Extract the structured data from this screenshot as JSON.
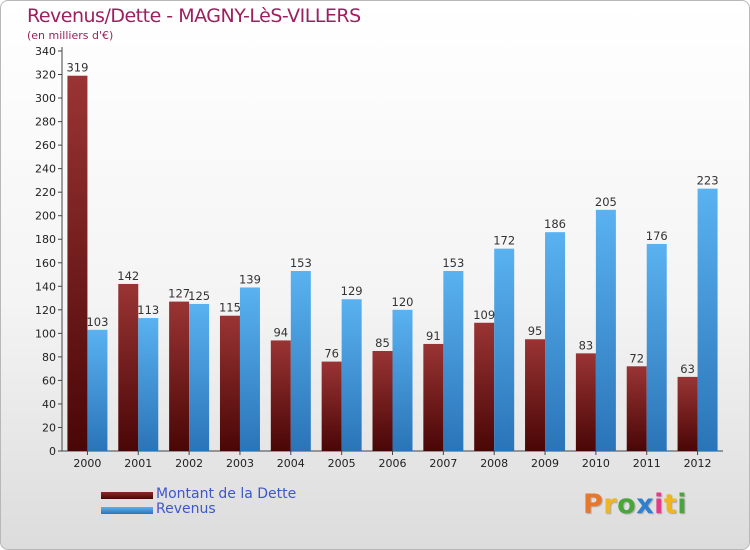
{
  "chart_data": {
    "type": "bar",
    "title": "Revenus/Dette - MAGNY-LèS-VILLERS",
    "subtitle": "(en milliers d'€)",
    "categories": [
      "2000",
      "2001",
      "2002",
      "2003",
      "2004",
      "2005",
      "2006",
      "2007",
      "2008",
      "2009",
      "2010",
      "2011",
      "2012"
    ],
    "series": [
      {
        "name": "Montant de la Dette",
        "color": "#7a1c1c",
        "values": [
          319,
          142,
          127,
          115,
          94,
          76,
          85,
          91,
          109,
          95,
          83,
          72,
          63
        ]
      },
      {
        "name": "Revenus",
        "color": "#4aa3e6",
        "values": [
          103,
          113,
          125,
          139,
          153,
          129,
          120,
          153,
          172,
          186,
          205,
          176,
          223
        ]
      }
    ],
    "ylim": [
      0,
      340
    ],
    "ytick_step": 20,
    "grid": false,
    "data_labels": true,
    "legend_position": "bottom-left"
  },
  "logo": {
    "letters": [
      "P",
      "r",
      "o",
      "x",
      "i",
      "t",
      "i"
    ],
    "colors": [
      "#e8762b",
      "#f0b51f",
      "#4aa53a",
      "#2e7fd0",
      "#e03c8a",
      "#f0b51f",
      "#4aa53a"
    ]
  }
}
